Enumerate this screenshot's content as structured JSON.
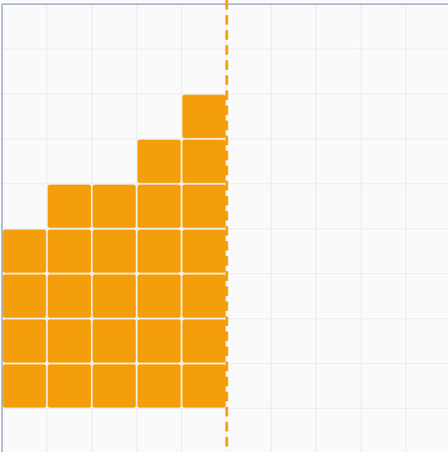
{
  "board": {
    "columns": 10,
    "rows": 10,
    "colors": {
      "background": "#fafafa",
      "grid_line": "#e2e6ec",
      "frame": "#9aa8c4",
      "block": "#f59e0b",
      "divider": "#f59e0b"
    },
    "column_heights": [
      4,
      5,
      5,
      6,
      7
    ],
    "divider_after_column": 5,
    "block_icon": "square-block",
    "divider_style": "dashed"
  }
}
